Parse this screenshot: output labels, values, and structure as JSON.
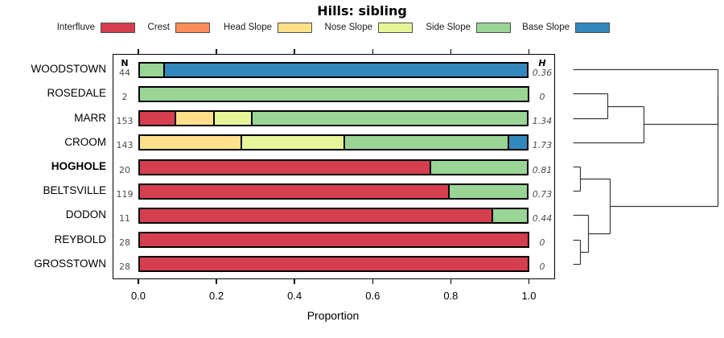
{
  "title": "Hills: sibling",
  "legend": {
    "items": [
      {
        "label": "Interfluve",
        "color": "#d53e4f"
      },
      {
        "label": "Crest",
        "color": "#fc8d59"
      },
      {
        "label": "Head Slope",
        "color": "#fee08b"
      },
      {
        "label": "Nose Slope",
        "color": "#e6f598"
      },
      {
        "label": "Side Slope",
        "color": "#99d594"
      },
      {
        "label": "Base Slope",
        "color": "#3288bd"
      }
    ]
  },
  "columns": {
    "n_header": "N",
    "h_header": "H"
  },
  "x_axis": {
    "ticks": [
      "0.0",
      "0.2",
      "0.4",
      "0.6",
      "0.8",
      "1.0"
    ],
    "label": "Proportion",
    "range": [
      0,
      1
    ]
  },
  "chart_data": {
    "type": "bar",
    "stacked": true,
    "orientation": "horizontal",
    "title": "Hills: sibling",
    "xlabel": "Proportion",
    "xlim": [
      0,
      1
    ],
    "categories": [
      "Interfluve",
      "Crest",
      "Head Slope",
      "Nose Slope",
      "Side Slope",
      "Base Slope"
    ],
    "colors": [
      "#d53e4f",
      "#fc8d59",
      "#fee08b",
      "#e6f598",
      "#99d594",
      "#3288bd"
    ],
    "rows": [
      {
        "name": "WOODSTOWN",
        "bold": false,
        "n": "44",
        "h": "0.36",
        "values": [
          0,
          0,
          0,
          0,
          0.068,
          0.932
        ]
      },
      {
        "name": "ROSEDALE",
        "bold": false,
        "n": "2",
        "h": "0",
        "values": [
          0,
          0,
          0,
          0,
          1,
          0
        ]
      },
      {
        "name": "MARR",
        "bold": false,
        "n": "153",
        "h": "1.34",
        "values": [
          0.098,
          0,
          0.098,
          0.098,
          0.706,
          0
        ]
      },
      {
        "name": "CROOM",
        "bold": false,
        "n": "143",
        "h": "1.73",
        "values": [
          0,
          0,
          0.266,
          0.265,
          0.42,
          0.049
        ]
      },
      {
        "name": "HOGHOLE",
        "bold": true,
        "n": "20",
        "h": "0.81",
        "values": [
          0.75,
          0,
          0,
          0,
          0.25,
          0
        ]
      },
      {
        "name": "BELTSVILLE",
        "bold": false,
        "n": "119",
        "h": "0.73",
        "values": [
          0.798,
          0,
          0,
          0,
          0.202,
          0
        ]
      },
      {
        "name": "DODON",
        "bold": false,
        "n": "11",
        "h": "0.44",
        "values": [
          0.909,
          0,
          0,
          0,
          0.091,
          0
        ]
      },
      {
        "name": "REYBOLD",
        "bold": false,
        "n": "28",
        "h": "0",
        "values": [
          1,
          0,
          0,
          0,
          0,
          0
        ]
      },
      {
        "name": "GROSSTOWN",
        "bold": false,
        "n": "28",
        "h": "0",
        "values": [
          1,
          0,
          0,
          0,
          0,
          0
        ]
      }
    ],
    "dendrogram": {
      "leaf_order": [
        "WOODSTOWN",
        "ROSEDALE",
        "MARR",
        "CROOM",
        "HOGHOLE",
        "BELTSVILLE",
        "DODON",
        "REYBOLD",
        "GROSSTOWN"
      ],
      "merges": [
        {
          "id": "m1",
          "a": "ROSEDALE",
          "b": "MARR",
          "height": 0.24
        },
        {
          "id": "m2",
          "a": "m1",
          "b": "CROOM",
          "height": 0.49
        },
        {
          "id": "m3",
          "a": "HOGHOLE",
          "b": "BELTSVILLE",
          "height": 0.05
        },
        {
          "id": "m4",
          "a": "REYBOLD",
          "b": "GROSSTOWN",
          "height": 0.05
        },
        {
          "id": "m5",
          "a": "DODON",
          "b": "m4",
          "height": 0.111
        },
        {
          "id": "m6",
          "a": "m3",
          "b": "m5",
          "height": 0.26
        },
        {
          "id": "m7",
          "a": "WOODSTOWN",
          "b": "m2",
          "height": 1.0
        },
        {
          "id": "m8",
          "a": "m7",
          "b": "m6",
          "height": 1.0
        }
      ]
    }
  }
}
